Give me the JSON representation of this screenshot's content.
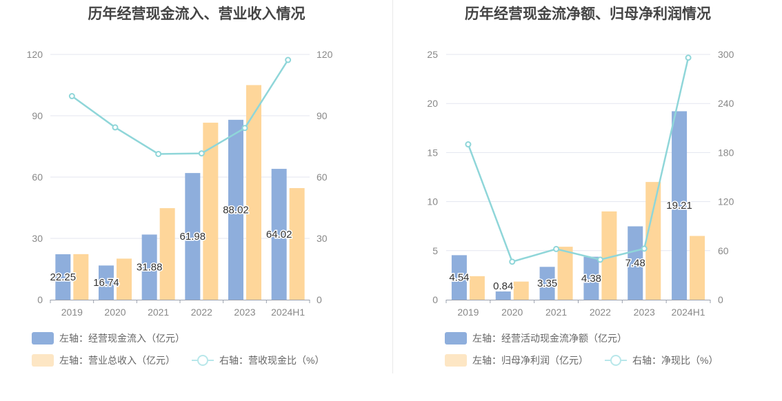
{
  "colors": {
    "bar1": "#8eaedc",
    "bar2": "#fed69a",
    "bar2_legend": "#fde6c4",
    "line": "#8fd6d9",
    "line_legend": "#b8e7ea",
    "grid": "#e3e6ef",
    "axis_text": "#888888"
  },
  "chart_data": [
    {
      "type": "bar",
      "title": "历年经营现金流入、营业收入情况",
      "categories": [
        "2019",
        "2020",
        "2021",
        "2022",
        "2023",
        "2024H1"
      ],
      "y_left": {
        "min": 0,
        "max": 120,
        "ticks": [
          "0",
          "30",
          "60",
          "90",
          "120"
        ]
      },
      "y_right": {
        "min": 0,
        "max": 120,
        "ticks": [
          "0",
          "30",
          "60",
          "90",
          "120"
        ]
      },
      "series": [
        {
          "name": "左轴：经营现金流入（亿元）",
          "kind": "bar",
          "axis": "left",
          "color": "#8eaedc",
          "values": [
            22.25,
            16.74,
            31.88,
            61.98,
            88.02,
            64.02
          ],
          "labels": [
            "22.25",
            "16.74",
            "31.88",
            "61.98",
            "88.02",
            "64.02"
          ]
        },
        {
          "name": "左轴：营业总收入（亿元）",
          "kind": "bar",
          "axis": "left",
          "color": "#fed69a",
          "values": [
            22.3,
            20.1,
            44.8,
            86.6,
            105.0,
            54.6
          ]
        },
        {
          "name": "右轴：营收现金比（%）",
          "kind": "line",
          "axis": "right",
          "color": "#8fd6d9",
          "values": [
            99.6,
            84.3,
            71.3,
            71.6,
            84.0,
            117.3
          ]
        }
      ],
      "grid": true,
      "legend_position": "bottom-left"
    },
    {
      "type": "bar",
      "title": "历年经营现金流净额、归母净利润情况",
      "categories": [
        "2019",
        "2020",
        "2021",
        "2022",
        "2023",
        "2024H1"
      ],
      "y_left": {
        "min": 0,
        "max": 25,
        "ticks": [
          "0",
          "5",
          "10",
          "15",
          "20",
          "25"
        ]
      },
      "y_right": {
        "min": 0,
        "max": 300,
        "ticks": [
          "0",
          "60",
          "120",
          "180",
          "240",
          "300"
        ]
      },
      "series": [
        {
          "name": "左轴：经营活动现金流净额（亿元）",
          "kind": "bar",
          "axis": "left",
          "color": "#8eaedc",
          "values": [
            4.54,
            0.84,
            3.35,
            4.38,
            7.48,
            19.21
          ],
          "labels": [
            "4.54",
            "0.84",
            "3.35",
            "4.38",
            "7.48",
            "19.21"
          ]
        },
        {
          "name": "左轴：归母净利润（亿元）",
          "kind": "bar",
          "axis": "left",
          "color": "#fed69a",
          "values": [
            2.4,
            1.85,
            5.4,
            9.0,
            12.0,
            6.5
          ]
        },
        {
          "name": "右轴：净现比（%）",
          "kind": "line",
          "axis": "right",
          "color": "#8fd6d9",
          "values": [
            190,
            46.5,
            62,
            49,
            62.5,
            296
          ]
        }
      ],
      "grid": true,
      "legend_position": "bottom-left"
    }
  ]
}
